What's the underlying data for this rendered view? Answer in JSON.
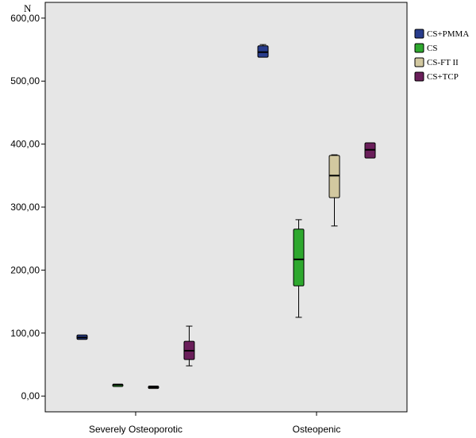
{
  "chart_data": {
    "type": "box",
    "ylabel": "N",
    "categories": [
      "Severely Osteoporotic",
      "Osteopenic"
    ],
    "ylim": [
      -25,
      625
    ],
    "yticks": [
      0,
      100,
      200,
      300,
      400,
      500,
      600
    ],
    "ytick_labels": [
      "0,00",
      "100,00",
      "200,00",
      "300,00",
      "400,00",
      "500,00",
      "600,00"
    ],
    "legend_position": "right",
    "series": [
      {
        "name": "CS+PMMA",
        "color": "#283c8c",
        "boxes": [
          {
            "min": 90,
            "q1": 90,
            "median": 93,
            "q3": 97,
            "max": 97
          },
          {
            "min": 538,
            "q1": 538,
            "median": 546,
            "q3": 556,
            "max": 558
          }
        ]
      },
      {
        "name": "CS",
        "color": "#2ea82e",
        "boxes": [
          {
            "min": 17,
            "q1": 17,
            "median": 18,
            "q3": 19,
            "max": 19
          },
          {
            "min": 125,
            "q1": 175,
            "median": 217,
            "q3": 265,
            "max": 280
          }
        ]
      },
      {
        "name": "CS-FT II",
        "color": "#d2c8a0",
        "boxes": [
          {
            "min": 12,
            "q1": 12,
            "median": 14,
            "q3": 16,
            "max": 16
          },
          {
            "min": 270,
            "q1": 315,
            "median": 350,
            "q3": 382,
            "max": 383
          }
        ]
      },
      {
        "name": "CS+TCP",
        "color": "#6a1e5a",
        "boxes": [
          {
            "min": 48,
            "q1": 58,
            "median": 72,
            "q3": 87,
            "max": 111
          },
          {
            "min": 378,
            "q1": 378,
            "median": 391,
            "q3": 402,
            "max": 402
          }
        ]
      }
    ]
  }
}
